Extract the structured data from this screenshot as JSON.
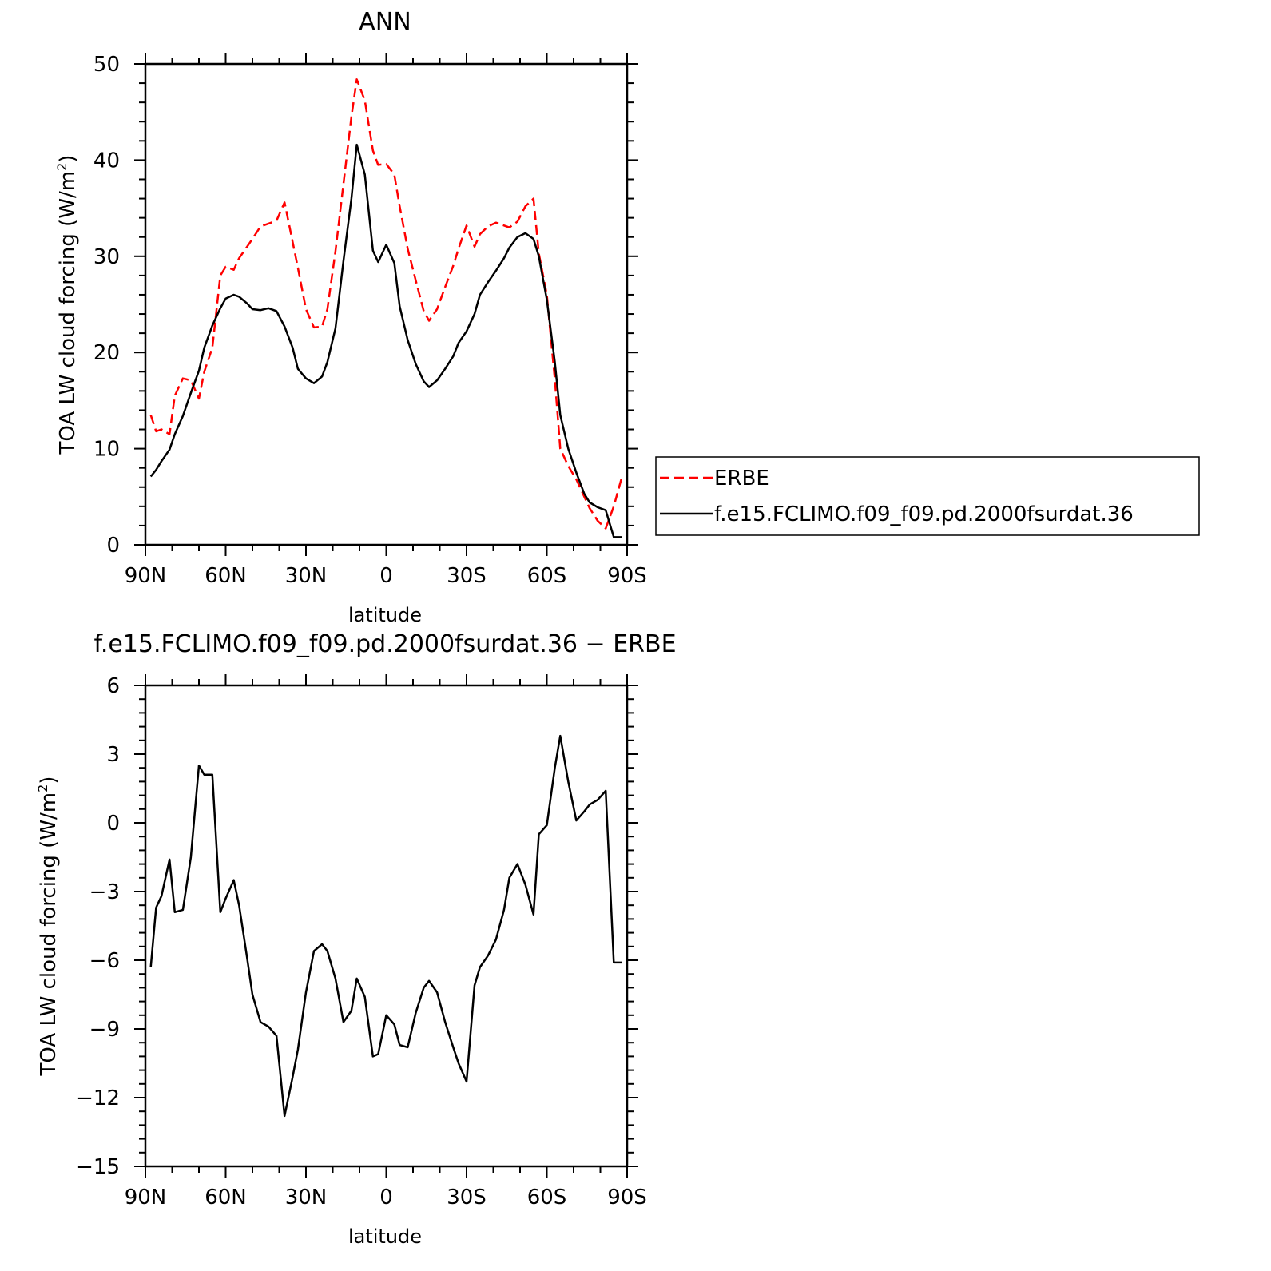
{
  "chart_data": [
    {
      "type": "line",
      "title": "ANN",
      "xlabel": "latitude",
      "ylabel": "TOA LW cloud forcing (W/m²)",
      "ylabel_main": "TOA LW cloud forcing (W/m",
      "ylabel_sup": "2",
      "ylabel_end": ")",
      "xlim": [
        -90,
        90
      ],
      "ylim": [
        0,
        50
      ],
      "x_ticks": [
        -90,
        -60,
        -30,
        0,
        30,
        60,
        90
      ],
      "x_tick_labels": [
        "90N",
        "60N",
        "30N",
        "0",
        "30S",
        "60S",
        "90S"
      ],
      "y_ticks": [
        0,
        10,
        20,
        30,
        40,
        50
      ],
      "y_tick_labels": [
        "0",
        "10",
        "20",
        "30",
        "40",
        "50"
      ],
      "legend": {
        "position": "right",
        "entries": [
          {
            "label": "ERBE",
            "color": "#ff0000",
            "dash": "dashed"
          },
          {
            "label": "f.e15.FCLIMO.f09_f09.pd.2000fsurdat.36",
            "color": "#000000",
            "dash": "solid"
          }
        ]
      },
      "series": [
        {
          "name": "ERBE",
          "color": "#ff0000",
          "dash": "dashed",
          "x": [
            -88,
            -86,
            -84,
            -81,
            -79,
            -76,
            -73,
            -70,
            -68,
            -65,
            -62,
            -60,
            -57,
            -55,
            -52,
            -50,
            -47,
            -44,
            -41,
            -38,
            -35,
            -33,
            -30,
            -27,
            -24,
            -22,
            -19,
            -16,
            -13,
            -11,
            -8,
            -5,
            -3,
            0,
            3,
            5,
            8,
            11,
            14,
            16,
            19,
            22,
            25,
            27,
            30,
            33,
            35,
            38,
            41,
            44,
            46,
            49,
            52,
            55,
            57,
            60,
            63,
            65,
            68,
            71,
            74,
            76,
            79,
            82,
            85,
            88
          ],
          "y": [
            13.5,
            11.8,
            12.0,
            11.5,
            15.5,
            17.3,
            17.1,
            15.2,
            18.0,
            20.5,
            28.0,
            28.9,
            28.6,
            29.8,
            31.0,
            31.8,
            33.1,
            33.4,
            33.7,
            35.6,
            31.5,
            28.8,
            24.5,
            22.6,
            22.7,
            24.5,
            30.5,
            37.5,
            44.5,
            48.4,
            46.2,
            41.0,
            39.5,
            39.6,
            38.5,
            35.2,
            30.8,
            27.5,
            24.3,
            23.3,
            24.5,
            26.8,
            29.0,
            30.8,
            33.2,
            31.0,
            32.3,
            33.1,
            33.5,
            33.2,
            33.0,
            33.6,
            35.2,
            36.0,
            30.3,
            26.0,
            17.2,
            10.0,
            8.2,
            6.8,
            5.0,
            3.8,
            2.5,
            1.7,
            4.0,
            7.0
          ]
        },
        {
          "name": "f.e15.FCLIMO.f09_f09.pd.2000fsurdat.36",
          "color": "#000000",
          "dash": "solid",
          "x": [
            -88,
            -86,
            -84,
            -81,
            -79,
            -76,
            -73,
            -70,
            -68,
            -65,
            -62,
            -60,
            -57,
            -55,
            -52,
            -50,
            -47,
            -44,
            -41,
            -38,
            -35,
            -33,
            -30,
            -27,
            -24,
            -22,
            -19,
            -16,
            -13,
            -11,
            -8,
            -5,
            -3,
            0,
            3,
            5,
            8,
            11,
            14,
            16,
            19,
            22,
            25,
            27,
            30,
            33,
            35,
            38,
            41,
            44,
            46,
            49,
            52,
            55,
            57,
            60,
            63,
            65,
            68,
            71,
            74,
            76,
            79,
            82,
            85,
            88
          ],
          "y": [
            7.1,
            7.8,
            8.7,
            9.9,
            11.5,
            13.4,
            15.8,
            18.1,
            20.5,
            22.8,
            24.6,
            25.6,
            26.0,
            25.8,
            25.1,
            24.5,
            24.4,
            24.6,
            24.3,
            22.7,
            20.5,
            18.3,
            17.3,
            16.8,
            17.5,
            19.0,
            22.5,
            29.5,
            36.0,
            41.6,
            38.5,
            30.6,
            29.4,
            31.2,
            29.3,
            24.8,
            21.3,
            18.8,
            17.0,
            16.4,
            17.1,
            18.3,
            19.6,
            21.0,
            22.2,
            24.0,
            26.0,
            27.3,
            28.5,
            29.8,
            30.9,
            32.0,
            32.4,
            31.8,
            30.0,
            25.5,
            19.0,
            13.5,
            10.0,
            7.5,
            5.3,
            4.4,
            3.9,
            3.6,
            0.8,
            0.8
          ]
        }
      ]
    },
    {
      "type": "line",
      "title": "f.e15.FCLIMO.f09_f09.pd.2000fsurdat.36 − ERBE",
      "xlabel": "latitude",
      "ylabel": "TOA LW cloud forcing (W/m²)",
      "ylabel_main": "TOA LW cloud forcing (W/m",
      "ylabel_sup": "2",
      "ylabel_end": ")",
      "xlim": [
        -90,
        90
      ],
      "ylim": [
        -15,
        6
      ],
      "x_ticks": [
        -90,
        -60,
        -30,
        0,
        30,
        60,
        90
      ],
      "x_tick_labels": [
        "90N",
        "60N",
        "30N",
        "0",
        "30S",
        "60S",
        "90S"
      ],
      "y_ticks": [
        -15,
        -12,
        -9,
        -6,
        -3,
        0,
        3,
        6
      ],
      "y_tick_labels": [
        "−15",
        "−12",
        "−9",
        "−6",
        "−3",
        "0",
        "3",
        "6"
      ],
      "series": [
        {
          "color": "#000000",
          "dash": "solid",
          "x": [
            -88,
            -86,
            -84,
            -81,
            -79,
            -76,
            -73,
            -70,
            -68,
            -65,
            -62,
            -60,
            -57,
            -55,
            -52,
            -50,
            -47,
            -44,
            -41,
            -38,
            -35,
            -33,
            -30,
            -27,
            -24,
            -22,
            -19,
            -16,
            -13,
            -11,
            -8,
            -5,
            -3,
            0,
            3,
            5,
            8,
            11,
            14,
            16,
            19,
            22,
            25,
            27,
            30,
            33,
            35,
            38,
            41,
            44,
            46,
            49,
            52,
            55,
            57,
            60,
            63,
            65,
            68,
            71,
            74,
            76,
            79,
            82,
            85,
            88
          ],
          "y": [
            -6.3,
            -3.7,
            -3.2,
            -1.6,
            -3.9,
            -3.8,
            -1.5,
            2.5,
            2.1,
            2.1,
            -3.9,
            -3.3,
            -2.5,
            -3.6,
            -5.9,
            -7.5,
            -8.7,
            -8.9,
            -9.3,
            -12.8,
            -11.1,
            -9.9,
            -7.4,
            -5.6,
            -5.3,
            -5.6,
            -6.8,
            -8.7,
            -8.2,
            -6.8,
            -7.6,
            -10.2,
            -10.1,
            -8.4,
            -8.8,
            -9.7,
            -9.8,
            -8.3,
            -7.2,
            -6.9,
            -7.4,
            -8.7,
            -9.8,
            -10.5,
            -11.3,
            -7.1,
            -6.3,
            -5.8,
            -5.1,
            -3.8,
            -2.4,
            -1.8,
            -2.7,
            -4.0,
            -0.5,
            -0.1,
            2.4,
            3.8,
            1.8,
            0.1,
            0.5,
            0.8,
            1.0,
            1.4,
            -6.1,
            -6.1
          ]
        }
      ]
    }
  ]
}
